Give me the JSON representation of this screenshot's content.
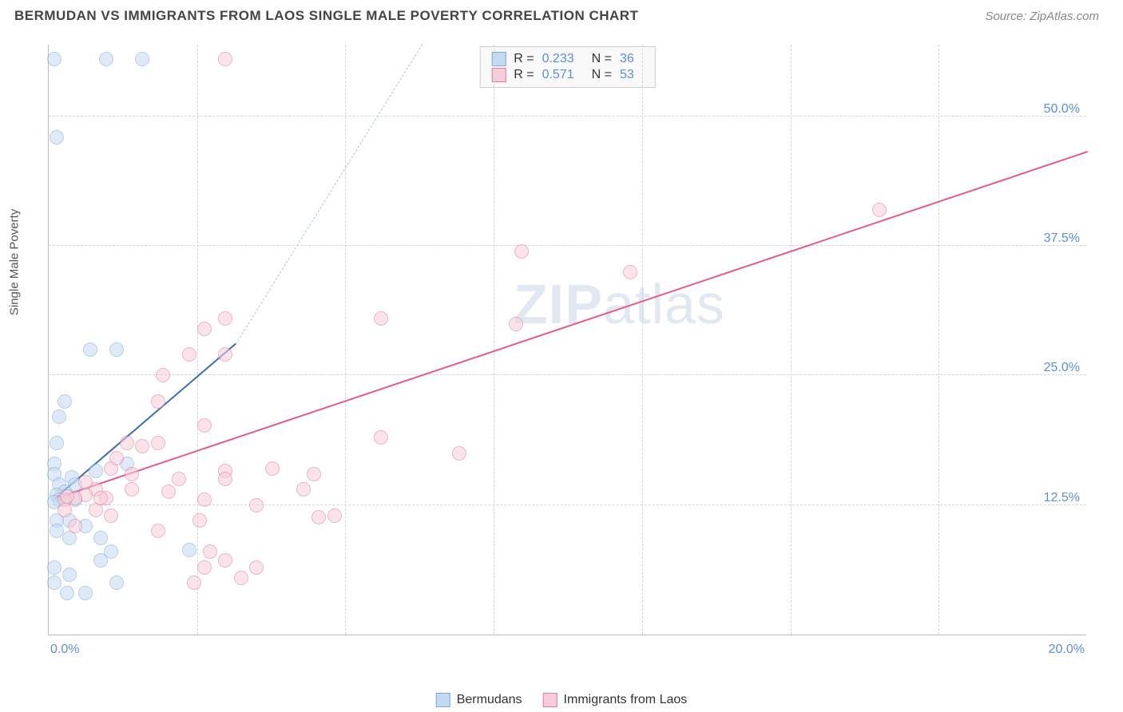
{
  "header": {
    "title": "BERMUDAN VS IMMIGRANTS FROM LAOS SINGLE MALE POVERTY CORRELATION CHART",
    "source": "Source: ZipAtlas.com"
  },
  "watermark": {
    "zip": "ZIP",
    "atlas": "atlas"
  },
  "chart": {
    "type": "scatter",
    "y_axis_label": "Single Male Poverty",
    "background_color": "#ffffff",
    "grid_color": "#d5d5d5",
    "axis_color": "#bbbbbb",
    "xlim": [
      0,
      20
    ],
    "ylim": [
      0,
      57
    ],
    "y_ticks": [
      {
        "value": 12.5,
        "label": "12.5%"
      },
      {
        "value": 25.0,
        "label": "25.0%"
      },
      {
        "value": 37.5,
        "label": "37.5%"
      },
      {
        "value": 50.0,
        "label": "50.0%"
      }
    ],
    "x_ticks": [
      {
        "value": 0,
        "label": "0.0%"
      },
      {
        "value": 20,
        "label": "20.0%"
      }
    ],
    "x_grid_steps": [
      2.86,
      5.71,
      8.57,
      11.43,
      14.29,
      17.14
    ],
    "marker_radius": 9,
    "series": [
      {
        "name": "Bermudans",
        "fill_color": "#c4daf2",
        "stroke_color": "#7ea8d8",
        "fill_opacity": 0.55,
        "R": "0.233",
        "N": "36",
        "trend": {
          "x1": 0.1,
          "y1": 13.0,
          "x2": 3.6,
          "y2": 28.0,
          "color": "#3b6fb5",
          "width": 2
        },
        "trend_dash": {
          "x1": 3.6,
          "y1": 28.0,
          "x2": 7.2,
          "y2": 57.0,
          "color": "#a9c3e4"
        },
        "points": [
          [
            0.1,
            55.5
          ],
          [
            1.1,
            55.5
          ],
          [
            1.8,
            55.5
          ],
          [
            0.15,
            48.0
          ],
          [
            0.8,
            27.5
          ],
          [
            1.3,
            27.5
          ],
          [
            0.3,
            22.5
          ],
          [
            0.2,
            21.0
          ],
          [
            0.15,
            18.5
          ],
          [
            0.1,
            16.5
          ],
          [
            0.1,
            15.5
          ],
          [
            0.2,
            14.5
          ],
          [
            0.45,
            15.2
          ],
          [
            0.5,
            14.5
          ],
          [
            0.3,
            13.8
          ],
          [
            0.15,
            13.5
          ],
          [
            0.2,
            13.0
          ],
          [
            0.5,
            13.0
          ],
          [
            0.9,
            15.8
          ],
          [
            0.1,
            12.8
          ],
          [
            0.15,
            11.0
          ],
          [
            0.4,
            11.0
          ],
          [
            0.7,
            10.5
          ],
          [
            0.15,
            10.0
          ],
          [
            0.4,
            9.3
          ],
          [
            1.0,
            9.3
          ],
          [
            1.2,
            8.0
          ],
          [
            1.0,
            7.2
          ],
          [
            0.1,
            6.5
          ],
          [
            2.7,
            8.2
          ],
          [
            0.4,
            5.8
          ],
          [
            0.1,
            5.0
          ],
          [
            1.5,
            16.5
          ],
          [
            1.3,
            5.0
          ],
          [
            0.35,
            4.0
          ],
          [
            0.7,
            4.0
          ]
        ]
      },
      {
        "name": "Immigrants from Laos",
        "fill_color": "#f6cdd8",
        "stroke_color": "#e27a9a",
        "fill_opacity": 0.55,
        "R": "0.571",
        "N": "53",
        "trend": {
          "x1": 0.1,
          "y1": 13.0,
          "x2": 20.0,
          "y2": 46.5,
          "color": "#e65a86",
          "width": 2
        },
        "points": [
          [
            3.4,
            55.5
          ],
          [
            16.0,
            41.0
          ],
          [
            9.1,
            37.0
          ],
          [
            11.2,
            35.0
          ],
          [
            3.4,
            30.5
          ],
          [
            3.0,
            29.5
          ],
          [
            6.4,
            30.5
          ],
          [
            9.0,
            30.0
          ],
          [
            2.2,
            25.0
          ],
          [
            2.7,
            27.0
          ],
          [
            3.4,
            27.0
          ],
          [
            2.1,
            22.5
          ],
          [
            3.0,
            20.2
          ],
          [
            1.5,
            18.5
          ],
          [
            1.8,
            18.2
          ],
          [
            2.1,
            18.5
          ],
          [
            1.2,
            16.0
          ],
          [
            0.9,
            14.0
          ],
          [
            0.7,
            13.5
          ],
          [
            0.5,
            13.2
          ],
          [
            0.3,
            13.0
          ],
          [
            6.4,
            19.0
          ],
          [
            7.9,
            17.5
          ],
          [
            3.4,
            15.8
          ],
          [
            4.3,
            16.0
          ],
          [
            2.5,
            15.0
          ],
          [
            3.4,
            15.0
          ],
          [
            5.1,
            15.5
          ],
          [
            1.6,
            14.0
          ],
          [
            2.3,
            13.8
          ],
          [
            4.9,
            14.0
          ],
          [
            3.0,
            13.0
          ],
          [
            4.0,
            12.5
          ],
          [
            0.3,
            12.0
          ],
          [
            0.9,
            12.0
          ],
          [
            1.2,
            11.5
          ],
          [
            2.9,
            11.0
          ],
          [
            0.5,
            10.5
          ],
          [
            5.2,
            11.3
          ],
          [
            5.5,
            11.5
          ],
          [
            2.1,
            10.0
          ],
          [
            3.1,
            8.0
          ],
          [
            3.4,
            7.2
          ],
          [
            3.0,
            6.5
          ],
          [
            4.0,
            6.5
          ],
          [
            3.7,
            5.5
          ],
          [
            2.8,
            5.0
          ],
          [
            0.7,
            14.7
          ],
          [
            1.1,
            13.2
          ],
          [
            1.0,
            13.2
          ],
          [
            0.35,
            13.3
          ],
          [
            1.3,
            17.0
          ],
          [
            1.6,
            15.5
          ]
        ]
      }
    ],
    "legend_top": {
      "R_label": "R =",
      "N_label": "N ="
    },
    "legend_bottom_labels": [
      "Bermudans",
      "Immigrants from Laos"
    ]
  }
}
